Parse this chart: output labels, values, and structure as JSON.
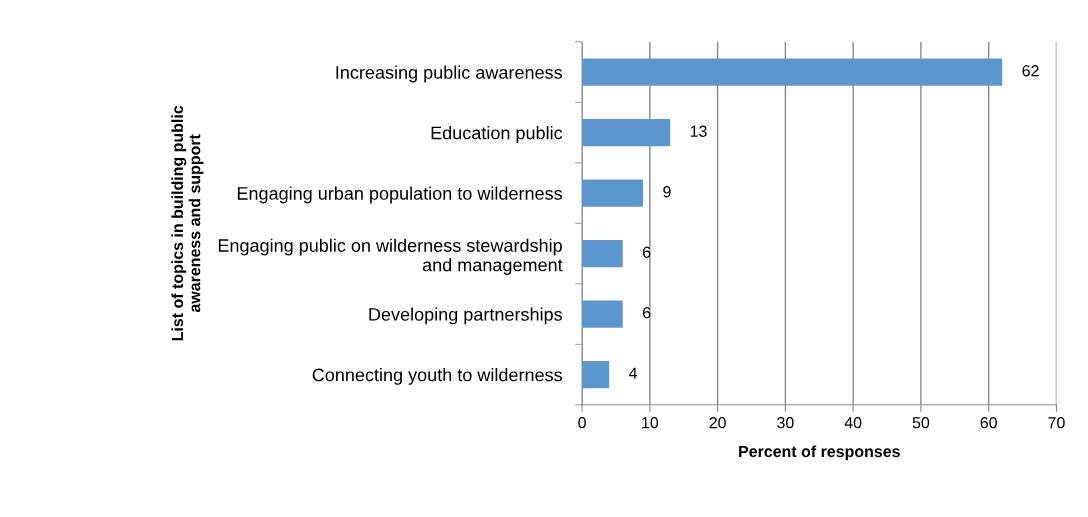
{
  "chart_data": {
    "type": "bar",
    "orientation": "horizontal",
    "categories": [
      "Increasing public awareness",
      "Education public",
      "Engaging urban population to wilderness",
      "Engaging public on wilderness stewardship\nand management",
      "Developing partnerships",
      "Connecting youth to wilderness"
    ],
    "values": [
      62,
      13,
      9,
      6,
      6,
      4
    ],
    "color": "#5b96cc",
    "xlim": [
      0,
      70
    ],
    "xticks": [
      0,
      10,
      20,
      30,
      40,
      50,
      60,
      70
    ],
    "xlabel": "Percent of responses",
    "ylabel": "List of topics in building public\nawareness and support",
    "grid": "x",
    "data_labels": true
  }
}
